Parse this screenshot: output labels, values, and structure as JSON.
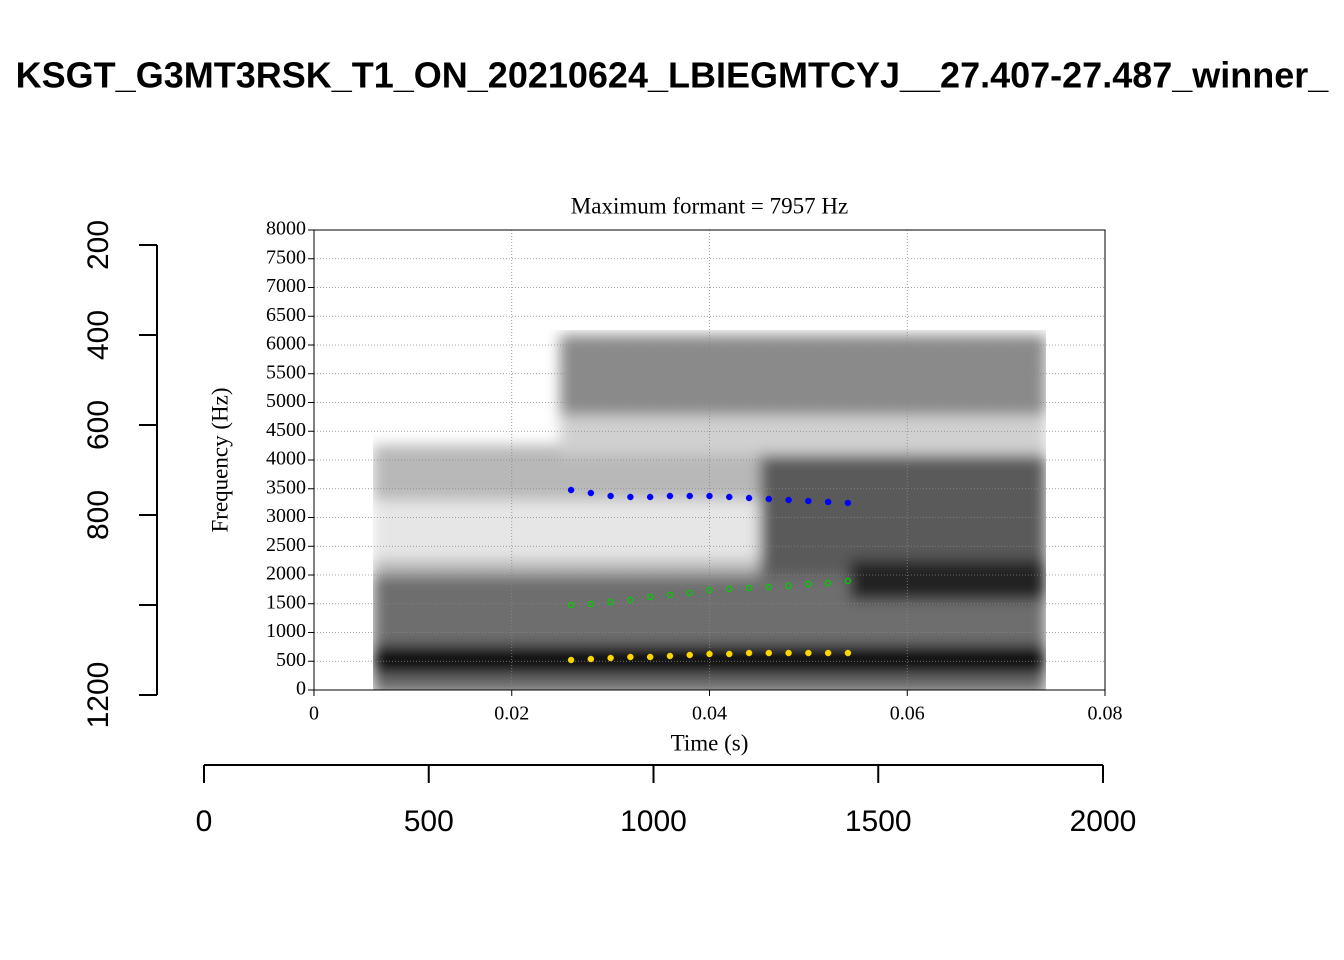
{
  "chart_data": [
    {
      "type": "axes",
      "title": "KSGT_G3MT3RSK_T1_ON_20210624_LBIEGMTCYJ__27.407-27.487_winner_",
      "xlim": [
        0,
        2000
      ],
      "xticks": [
        0,
        500,
        1000,
        1500,
        2000
      ],
      "ylim": [
        200,
        1200
      ],
      "y_reversed": true,
      "yticks": [
        200,
        400,
        600,
        800,
        {
          "value": 1000,
          "label": null
        },
        1200
      ]
    },
    {
      "type": "scatter",
      "title": "Maximum formant = 7957 Hz",
      "xlabel": "Time (s)",
      "ylabel": "Frequency (Hz)",
      "xlim": [
        0,
        0.08
      ],
      "xticks": [
        0,
        0.02,
        0.04,
        0.06,
        0.08
      ],
      "ylim": [
        0,
        8000
      ],
      "yticks": [
        0,
        500,
        1000,
        1500,
        2000,
        2500,
        3000,
        3500,
        4000,
        4500,
        5000,
        5500,
        6000,
        6500,
        7000,
        7500,
        8000
      ],
      "grid": true,
      "x": [
        0.026,
        0.028,
        0.03,
        0.032,
        0.034,
        0.036,
        0.038,
        0.04,
        0.042,
        0.044,
        0.046,
        0.048,
        0.05,
        0.052,
        0.054
      ],
      "series": [
        {
          "color": "#FFD700",
          "marker": "filled",
          "values": [
            522,
            539,
            557,
            574,
            574,
            591,
            609,
            626,
            626,
            643,
            643,
            643,
            643,
            643,
            643
          ]
        },
        {
          "color": "#00CD00",
          "marker": "open",
          "values": [
            1478,
            1496,
            1530,
            1565,
            1617,
            1652,
            1687,
            1739,
            1757,
            1774,
            1791,
            1809,
            1843,
            1861,
            1896
          ]
        },
        {
          "color": "#0000FF",
          "marker": "filled",
          "values": [
            3478,
            3426,
            3374,
            3357,
            3357,
            3374,
            3374,
            3374,
            3357,
            3339,
            3322,
            3304,
            3287,
            3270,
            3253
          ]
        }
      ]
    }
  ]
}
